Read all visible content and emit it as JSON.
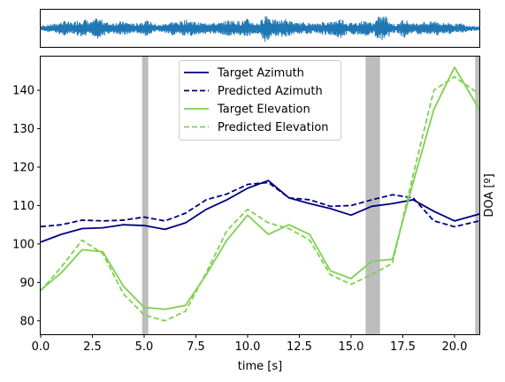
{
  "chart_data": [
    {
      "type": "line",
      "panel": "waveform",
      "description_visible": "audio waveform strip (no axes ticks)",
      "color": "#1f77b4",
      "x": [
        0,
        0.3,
        0.6,
        0.9,
        1.2,
        1.5,
        1.8,
        2.1,
        2.4,
        2.7,
        3.0,
        3.3,
        3.6,
        3.9,
        4.2,
        4.5,
        4.8,
        5.1,
        5.4,
        5.7,
        6.0,
        6.3,
        6.6,
        6.9,
        7.2,
        7.5,
        7.8,
        8.1,
        8.4,
        8.7,
        9.0,
        9.3,
        9.6,
        9.9,
        10.2,
        10.5,
        10.8,
        11.1,
        11.4,
        11.7,
        12.0,
        12.3,
        12.6,
        12.9,
        13.2,
        13.5,
        13.8,
        14.1,
        14.4,
        14.7,
        15.0,
        15.3,
        15.6,
        15.9,
        16.2,
        16.5,
        16.8,
        17.1,
        17.4,
        17.7,
        18.0,
        18.3,
        18.6,
        18.9,
        19.2,
        19.5,
        19.8,
        20.1,
        20.4,
        20.7,
        21.0
      ],
      "amplitude": [
        0.15,
        0.2,
        0.25,
        0.35,
        0.45,
        0.3,
        0.5,
        0.55,
        0.35,
        0.6,
        0.45,
        0.3,
        0.35,
        0.4,
        0.35,
        0.25,
        0.4,
        0.45,
        0.3,
        0.2,
        0.3,
        0.4,
        0.35,
        0.5,
        0.45,
        0.35,
        0.3,
        0.4,
        0.3,
        0.35,
        0.5,
        0.45,
        0.4,
        0.55,
        0.3,
        0.35,
        0.9,
        0.5,
        0.45,
        0.55,
        0.4,
        0.3,
        0.35,
        0.3,
        0.25,
        0.4,
        0.35,
        0.45,
        0.6,
        0.3,
        0.35,
        0.4,
        0.45,
        0.3,
        0.7,
        0.75,
        0.3,
        0.25,
        0.6,
        0.3,
        0.3,
        0.4,
        0.35,
        0.45,
        0.3,
        0.35,
        0.25,
        0.3,
        0.2,
        0.15,
        0.1
      ]
    },
    {
      "type": "line",
      "panel": "doa",
      "xlabel": "time [s]",
      "ylabel": "DOA [º]",
      "xlim": [
        0,
        21.2
      ],
      "ylim": [
        76.5,
        149
      ],
      "xticks": [
        "0.0",
        "2.5",
        "5.0",
        "7.5",
        "10.0",
        "12.5",
        "15.0",
        "17.5",
        "20.0"
      ],
      "yticks": [
        "80",
        "90",
        "100",
        "110",
        "120",
        "130",
        "140"
      ],
      "grid": false,
      "legend_position": "top-center",
      "shaded_regions": [
        {
          "from": 4.9,
          "to": 5.2,
          "color": "#bdbdbd"
        },
        {
          "from": 15.7,
          "to": 16.4,
          "color": "#bdbdbd"
        },
        {
          "from": 21.0,
          "to": 21.2,
          "color": "#bdbdbd"
        }
      ],
      "x": [
        0,
        1,
        2,
        3,
        4,
        5,
        6,
        7,
        8,
        9,
        10,
        11,
        12,
        13,
        14,
        15,
        16,
        17,
        18,
        19,
        20,
        21.2
      ],
      "series": [
        {
          "name": "Target Azimuth",
          "color": "#000080",
          "dash": "solid",
          "values": [
            100.5,
            102.5,
            104.0,
            104.2,
            105.0,
            104.8,
            103.8,
            105.5,
            109.0,
            111.5,
            114.5,
            116.5,
            112.0,
            110.5,
            109.2,
            107.5,
            109.8,
            110.5,
            111.5,
            108.5,
            106.0,
            107.8
          ]
        },
        {
          "name": "Predicted Azimuth",
          "color": "#000080",
          "dash": "dashed",
          "values": [
            104.5,
            105.0,
            106.2,
            106.0,
            106.2,
            107.0,
            106.0,
            108.0,
            111.5,
            113.0,
            115.5,
            116.0,
            112.0,
            111.5,
            109.8,
            110.0,
            111.5,
            112.8,
            112.0,
            106.0,
            104.5,
            106.0
          ]
        },
        {
          "name": "Target Elevation",
          "color": "#80d050",
          "dash": "solid",
          "values": [
            88.0,
            92.5,
            98.5,
            98.0,
            89.0,
            83.5,
            83.0,
            84.0,
            92.0,
            101.0,
            107.5,
            102.5,
            105.0,
            102.5,
            93.0,
            91.0,
            95.5,
            96.0,
            116.0,
            135.0,
            146.0,
            135.0
          ]
        },
        {
          "name": "Predicted Elevation",
          "color": "#80d050",
          "dash": "dashed",
          "values": [
            87.8,
            94.0,
            101.0,
            97.5,
            87.0,
            81.5,
            80.0,
            82.5,
            92.5,
            103.5,
            109.0,
            105.5,
            104.0,
            101.0,
            92.0,
            89.5,
            92.0,
            95.0,
            118.0,
            140.0,
            143.5,
            139.0
          ]
        }
      ]
    }
  ]
}
